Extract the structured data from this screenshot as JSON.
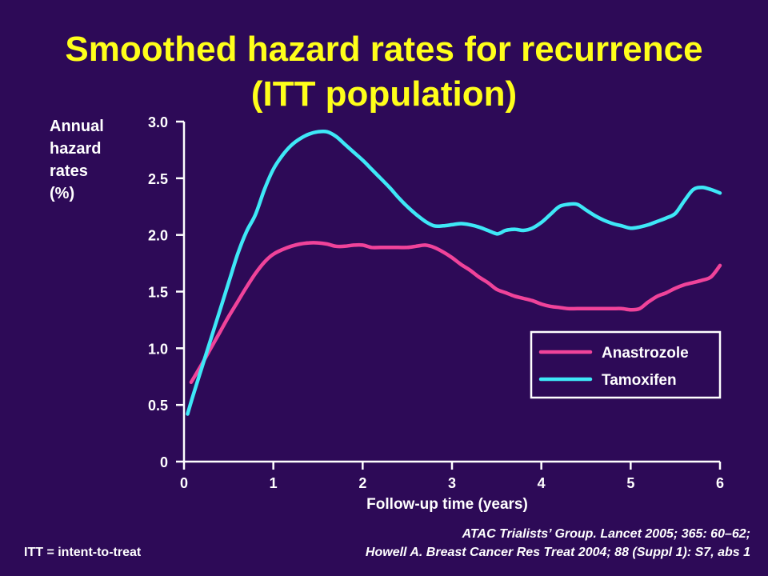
{
  "title_line1": "Smoothed hazard rates for recurrence",
  "title_line2": "(ITT population)",
  "footnote_left": "ITT = intent-to-treat",
  "citation_line1": "ATAC Trialists’ Group. Lancet 2005; 365: 60–62;",
  "citation_line2": "Howell A. Breast Cancer Res Treat 2004; 88 (Suppl 1): S7, abs 1",
  "colors": {
    "background": "#2d0a57",
    "title": "#ffff1a",
    "anastrozole": "#f0439a",
    "tamoxifen": "#3ee8f7",
    "text": "#ffffff"
  },
  "chart_data": {
    "type": "line",
    "title": "Smoothed hazard rates for recurrence (ITT population)",
    "xlabel": "Follow-up time (years)",
    "ylabel": "Annual\nhazard\nrates\n(%)",
    "xlim": [
      0,
      6
    ],
    "ylim": [
      0,
      3.0
    ],
    "x_ticks": [
      0,
      1,
      2,
      3,
      4,
      5,
      6
    ],
    "x_tick_labels": [
      "0",
      "1",
      "2",
      "3",
      "4",
      "5",
      "6"
    ],
    "y_ticks": [
      0,
      0.5,
      1.0,
      1.5,
      2.0,
      2.5,
      3.0
    ],
    "y_tick_labels": [
      "0",
      "0.5",
      "1.0",
      "1.5",
      "2.0",
      "2.5",
      "3.0"
    ],
    "grid": false,
    "legend_position": "right",
    "series": [
      {
        "name": "Anastrozole",
        "color": "#f0439a",
        "x": [
          0.08,
          0.2,
          0.3,
          0.4,
          0.5,
          0.6,
          0.7,
          0.8,
          0.9,
          1.0,
          1.1,
          1.2,
          1.3,
          1.4,
          1.5,
          1.6,
          1.7,
          1.8,
          1.9,
          2.0,
          2.1,
          2.2,
          2.3,
          2.4,
          2.5,
          2.6,
          2.7,
          2.8,
          2.9,
          3.0,
          3.1,
          3.2,
          3.3,
          3.4,
          3.5,
          3.6,
          3.7,
          3.8,
          3.9,
          4.0,
          4.1,
          4.2,
          4.3,
          4.4,
          4.5,
          4.6,
          4.7,
          4.8,
          4.9,
          5.0,
          5.1,
          5.2,
          5.3,
          5.4,
          5.5,
          5.6,
          5.7,
          5.8,
          5.9,
          6.0
        ],
        "values": [
          0.7,
          0.86,
          1.0,
          1.14,
          1.28,
          1.41,
          1.54,
          1.66,
          1.76,
          1.83,
          1.87,
          1.9,
          1.92,
          1.93,
          1.93,
          1.92,
          1.9,
          1.9,
          1.91,
          1.91,
          1.89,
          1.89,
          1.89,
          1.89,
          1.89,
          1.9,
          1.91,
          1.89,
          1.85,
          1.8,
          1.74,
          1.69,
          1.63,
          1.58,
          1.52,
          1.49,
          1.46,
          1.44,
          1.42,
          1.39,
          1.37,
          1.36,
          1.35,
          1.35,
          1.35,
          1.35,
          1.35,
          1.35,
          1.35,
          1.34,
          1.35,
          1.41,
          1.46,
          1.49,
          1.53,
          1.56,
          1.58,
          1.6,
          1.63,
          1.73
        ]
      },
      {
        "name": "Tamoxifen",
        "color": "#3ee8f7",
        "x": [
          0.04,
          0.1,
          0.2,
          0.3,
          0.4,
          0.5,
          0.6,
          0.7,
          0.8,
          0.9,
          1.0,
          1.1,
          1.2,
          1.3,
          1.4,
          1.5,
          1.6,
          1.7,
          1.8,
          1.9,
          2.0,
          2.1,
          2.2,
          2.3,
          2.4,
          2.5,
          2.6,
          2.7,
          2.8,
          2.9,
          3.0,
          3.1,
          3.2,
          3.3,
          3.4,
          3.5,
          3.55,
          3.6,
          3.7,
          3.8,
          3.9,
          4.0,
          4.1,
          4.2,
          4.3,
          4.4,
          4.5,
          4.6,
          4.7,
          4.8,
          4.9,
          5.0,
          5.1,
          5.2,
          5.3,
          5.4,
          5.5,
          5.6,
          5.7,
          5.8,
          5.9,
          6.0
        ],
        "values": [
          0.42,
          0.58,
          0.83,
          1.08,
          1.33,
          1.58,
          1.83,
          2.03,
          2.18,
          2.4,
          2.58,
          2.7,
          2.79,
          2.85,
          2.89,
          2.91,
          2.91,
          2.87,
          2.8,
          2.73,
          2.66,
          2.58,
          2.5,
          2.42,
          2.33,
          2.25,
          2.18,
          2.12,
          2.08,
          2.08,
          2.09,
          2.1,
          2.09,
          2.07,
          2.04,
          2.01,
          2.02,
          2.04,
          2.05,
          2.04,
          2.06,
          2.11,
          2.18,
          2.25,
          2.27,
          2.27,
          2.22,
          2.17,
          2.13,
          2.1,
          2.08,
          2.06,
          2.07,
          2.09,
          2.12,
          2.15,
          2.19,
          2.3,
          2.4,
          2.42,
          2.4,
          2.37
        ]
      }
    ]
  }
}
